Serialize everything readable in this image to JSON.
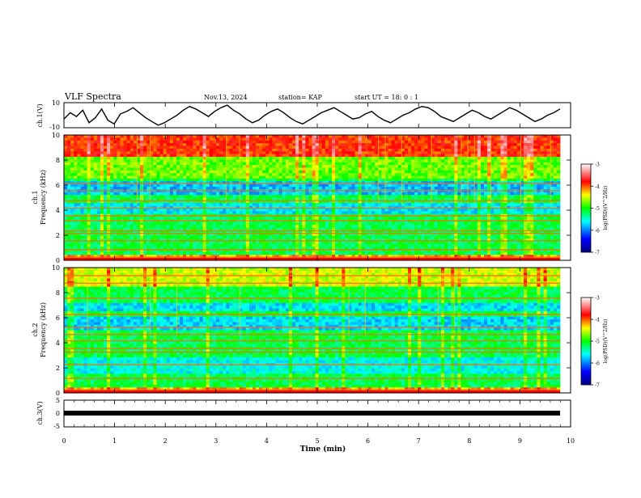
{
  "header": {
    "title": "VLF Spectra",
    "date": "Nov.13, 2024",
    "station": "station= KAP",
    "start_time": "start  UT  =   18: 0  : 1"
  },
  "chart_data": [
    {
      "id": "ch1-voltage",
      "type": "line",
      "ylabel": "ch.1(V)",
      "ylim": [
        -10,
        10
      ],
      "yticks": [
        "10",
        "-10"
      ],
      "x_range_min": [
        0,
        9.8
      ],
      "values": [
        -3,
        2,
        -1,
        4,
        -6,
        -2,
        5,
        -4,
        -7,
        1,
        3,
        6,
        2,
        -2,
        -5,
        -8,
        -6,
        -3,
        0,
        4,
        7,
        5,
        2,
        -1,
        3,
        6,
        8,
        4,
        1,
        -3,
        -6,
        -4,
        0,
        3,
        5,
        2,
        -2,
        -5,
        -7,
        -4,
        -1,
        2,
        4,
        6,
        3,
        0,
        -3,
        -2,
        1,
        3,
        -1,
        -4,
        -6,
        -3,
        0,
        2,
        5,
        7,
        6,
        3,
        -1,
        -3,
        -5,
        -2,
        1,
        4,
        2,
        -1,
        -3,
        0,
        3,
        6,
        4,
        1,
        -2,
        -5,
        -3,
        0,
        2,
        5
      ]
    },
    {
      "id": "ch1-spectrogram",
      "type": "heatmap",
      "ylabel_top": "ch.1",
      "ylabel": "Frequency (kHz)",
      "ylim": [
        0,
        10
      ],
      "yticks": [
        "0",
        "2",
        "4",
        "6",
        "8",
        "10"
      ],
      "colorbar": {
        "label": "log(PSD)(V^2/Hz)",
        "ticks": [
          "-3",
          "-4",
          "-5",
          "-6",
          "-7"
        ],
        "range": [
          -7,
          -3
        ]
      },
      "bands_khz": [
        0.3,
        0.9,
        1.6,
        2.2,
        2.4,
        3.2,
        3.6,
        4.2,
        4.8,
        5.6,
        6.2
      ],
      "note": "intense (-3) at 8-10 kHz, mid (-5) across 1-8 kHz, minima (-6) near 3.8 kHz and 5.6 kHz"
    },
    {
      "id": "ch2-spectrogram",
      "type": "heatmap",
      "ylabel_top": "ch.2",
      "ylabel": "Frequency (kHz)",
      "ylim": [
        0,
        10
      ],
      "yticks": [
        "0",
        "2",
        "4",
        "6",
        "8",
        "10"
      ],
      "colorbar": {
        "label": "log(PSD)(V^2/Hz)",
        "ticks": [
          "-3",
          "-4",
          "-5",
          "-6",
          "-7"
        ],
        "range": [
          -7,
          -3
        ]
      },
      "bands_khz": [
        0.3,
        1.2,
        2.3,
        3.3,
        3.6,
        4.2,
        4.7,
        5.3,
        6.3,
        7.6,
        8.8,
        9.4
      ],
      "note": "elevated (-4) at 8-10 kHz, minima (-6) near 2.4, 5.6 and 7 kHz"
    },
    {
      "id": "ch3-voltage",
      "type": "line",
      "ylabel": "ch.3(V)",
      "ylim": [
        -5,
        5
      ],
      "yticks": [
        "5",
        "0",
        "-5"
      ],
      "constant_value": 0
    }
  ],
  "xaxis": {
    "label": "Time (min)",
    "ticks": [
      "0",
      "1",
      "2",
      "3",
      "4",
      "5",
      "6",
      "7",
      "8",
      "9",
      "10"
    ],
    "range": [
      0,
      10
    ]
  }
}
